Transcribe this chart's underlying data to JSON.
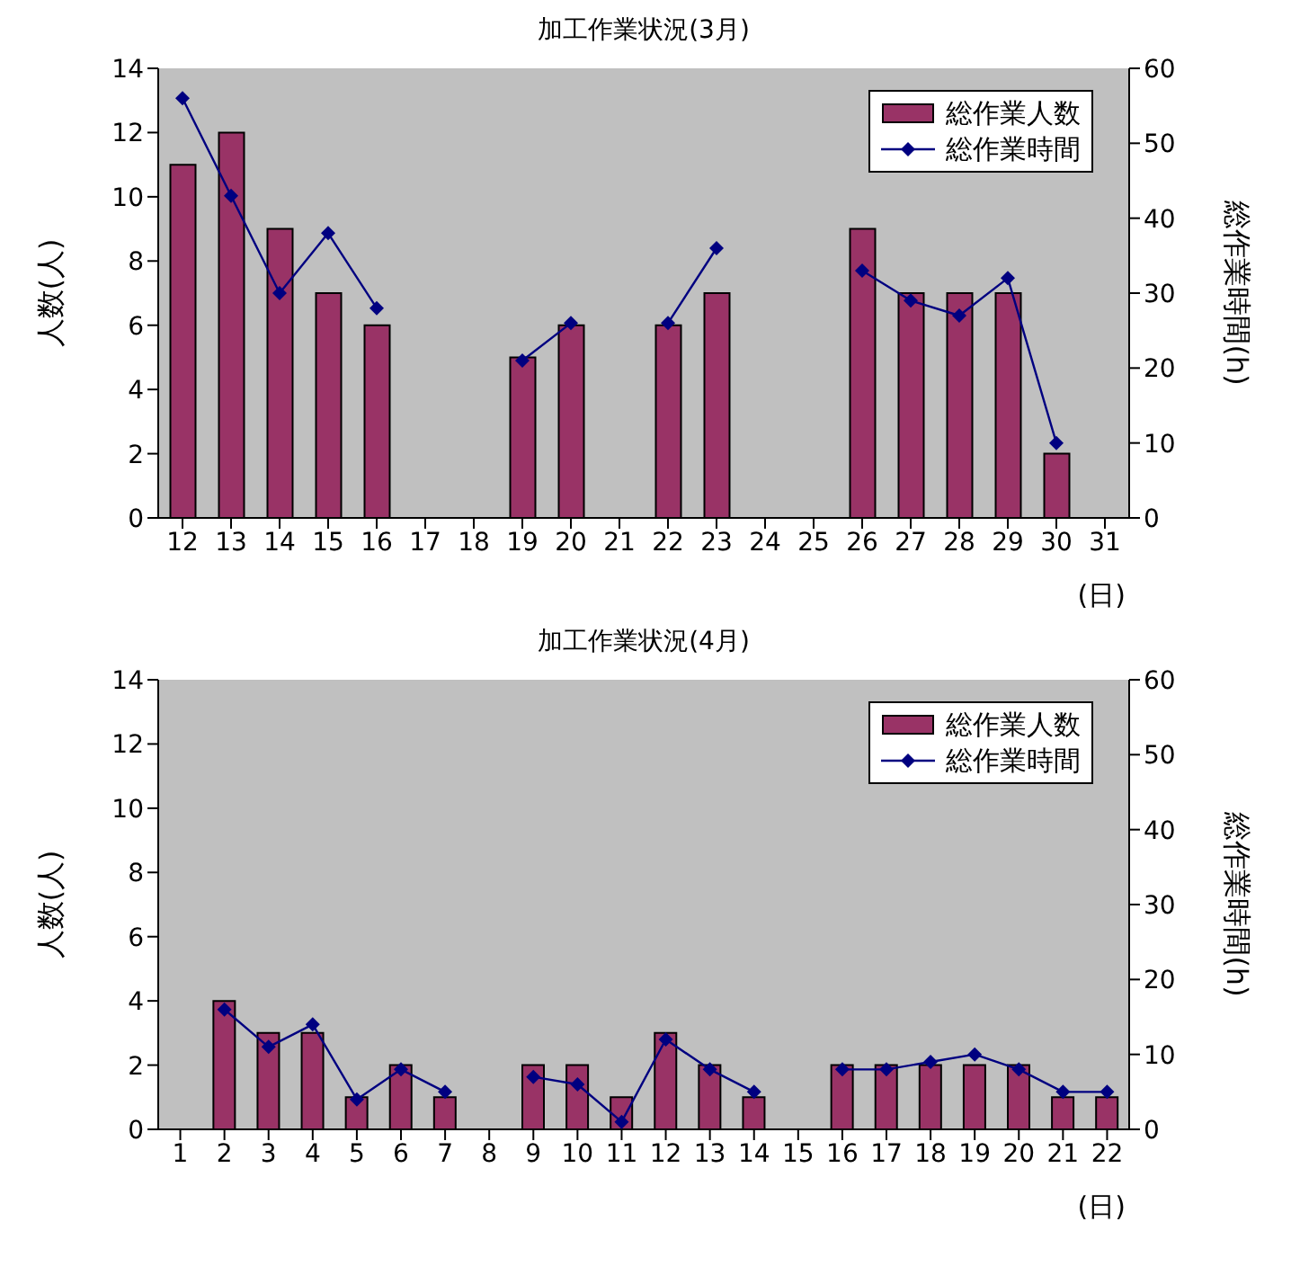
{
  "chart_data": [
    {
      "type": "bar",
      "title": "加工作業状況(3月)",
      "xlabel": "(日)",
      "ylabel": "人数(人)",
      "y2label": "総作業時間(h)",
      "categories": [
        "12",
        "13",
        "14",
        "15",
        "16",
        "17",
        "18",
        "19",
        "20",
        "21",
        "22",
        "23",
        "24",
        "25",
        "26",
        "27",
        "28",
        "29",
        "30",
        "31"
      ],
      "series": [
        {
          "name": "総作業人数",
          "color": "#993366",
          "values": [
            11,
            12,
            9,
            7,
            6,
            null,
            null,
            5,
            6,
            null,
            6,
            7,
            null,
            null,
            9,
            7,
            7,
            7,
            2,
            null
          ]
        },
        {
          "name": "総作業時間",
          "type": "line",
          "axis": "y2",
          "color": "#000080",
          "values": [
            56,
            43,
            30,
            38,
            28,
            null,
            null,
            21,
            26,
            null,
            26,
            36,
            null,
            null,
            33,
            29,
            27,
            32,
            10,
            null
          ]
        }
      ],
      "ylim": [
        0,
        14
      ],
      "yticks": [
        0,
        2,
        4,
        6,
        8,
        10,
        12,
        14
      ],
      "y2lim": [
        0,
        60
      ],
      "y2ticks": [
        0,
        10,
        20,
        30,
        40,
        50,
        60
      ],
      "legend": "top right",
      "marker": "diamond",
      "line_style": "solid"
    },
    {
      "type": "bar",
      "title": "加工作業状況(4月)",
      "xlabel": "(日)",
      "ylabel": "人数(人)",
      "y2label": "総作業時間(h)",
      "categories": [
        "1",
        "2",
        "3",
        "4",
        "5",
        "6",
        "7",
        "8",
        "9",
        "10",
        "11",
        "12",
        "13",
        "14",
        "15",
        "16",
        "17",
        "18",
        "19",
        "20",
        "21",
        "22"
      ],
      "series": [
        {
          "name": "総作業人数",
          "color": "#993366",
          "values": [
            null,
            4,
            3,
            3,
            1,
            2,
            1,
            null,
            2,
            2,
            1,
            3,
            2,
            1,
            null,
            2,
            2,
            2,
            2,
            2,
            1,
            1
          ]
        },
        {
          "name": "総作業時間",
          "type": "line",
          "axis": "y2",
          "color": "#000080",
          "values": [
            null,
            16,
            11,
            14,
            4,
            8,
            5,
            null,
            7,
            6,
            1,
            12,
            8,
            5,
            null,
            8,
            8,
            9,
            10,
            8,
            5,
            5
          ]
        }
      ],
      "ylim": [
        0,
        14
      ],
      "yticks": [
        0,
        2,
        4,
        6,
        8,
        10,
        12,
        14
      ],
      "y2lim": [
        0,
        60
      ],
      "y2ticks": [
        0,
        10,
        20,
        30,
        40,
        50,
        60
      ],
      "legend": "top right",
      "marker": "diamond",
      "line_style": "solid"
    }
  ]
}
